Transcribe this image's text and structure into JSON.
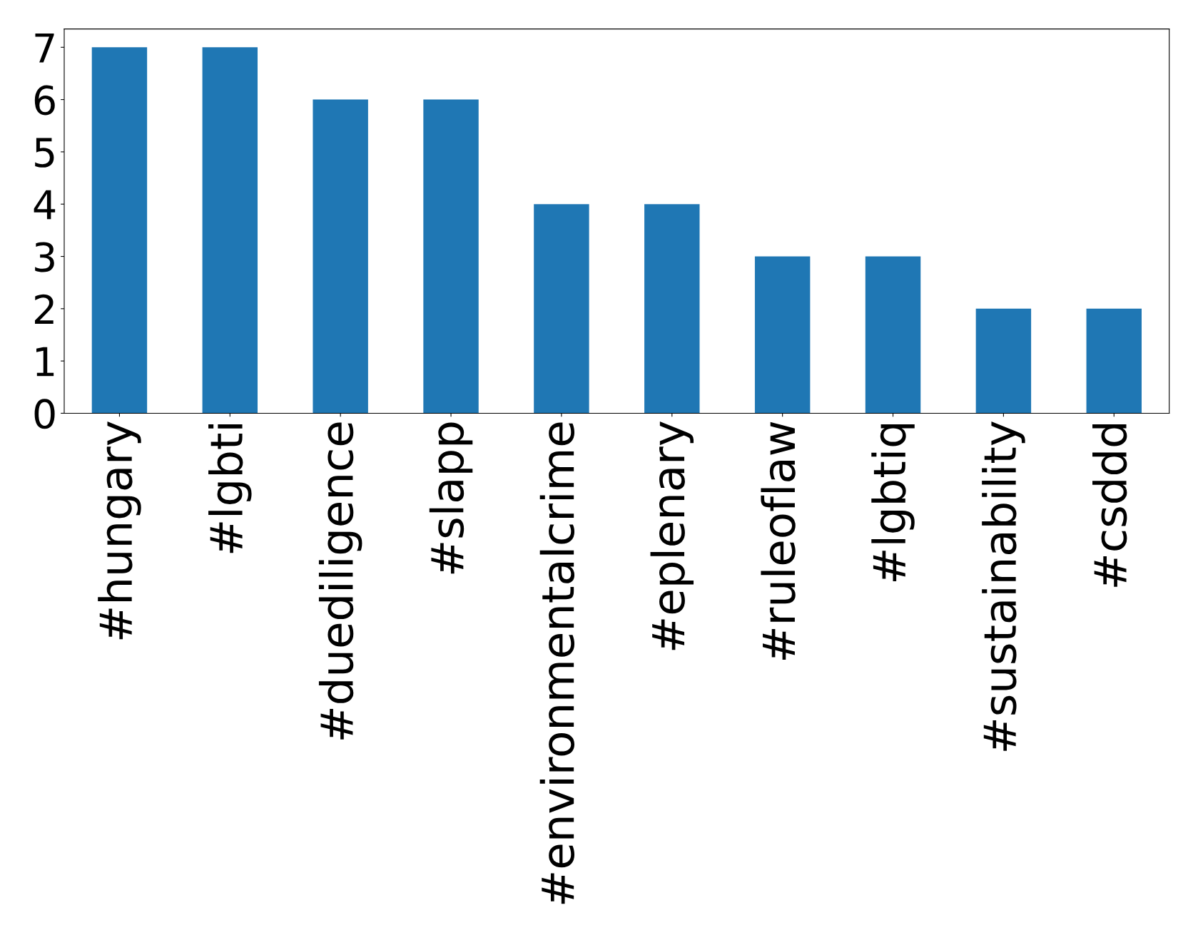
{
  "chart_data": {
    "type": "bar",
    "categories": [
      "#hungary",
      "#lgbti",
      "#duediligence",
      "#slapp",
      "#environmentalcrime",
      "#eplenary",
      "#ruleoflaw",
      "#lgbtiq",
      "#sustainability",
      "#csddd"
    ],
    "values": [
      7,
      7,
      6,
      6,
      4,
      4,
      3,
      3,
      2,
      2
    ],
    "color": "#1f77b4",
    "ylim": [
      0,
      7.35
    ],
    "yticks": [
      0,
      1,
      2,
      3,
      4,
      5,
      6,
      7
    ],
    "grid": false
  }
}
